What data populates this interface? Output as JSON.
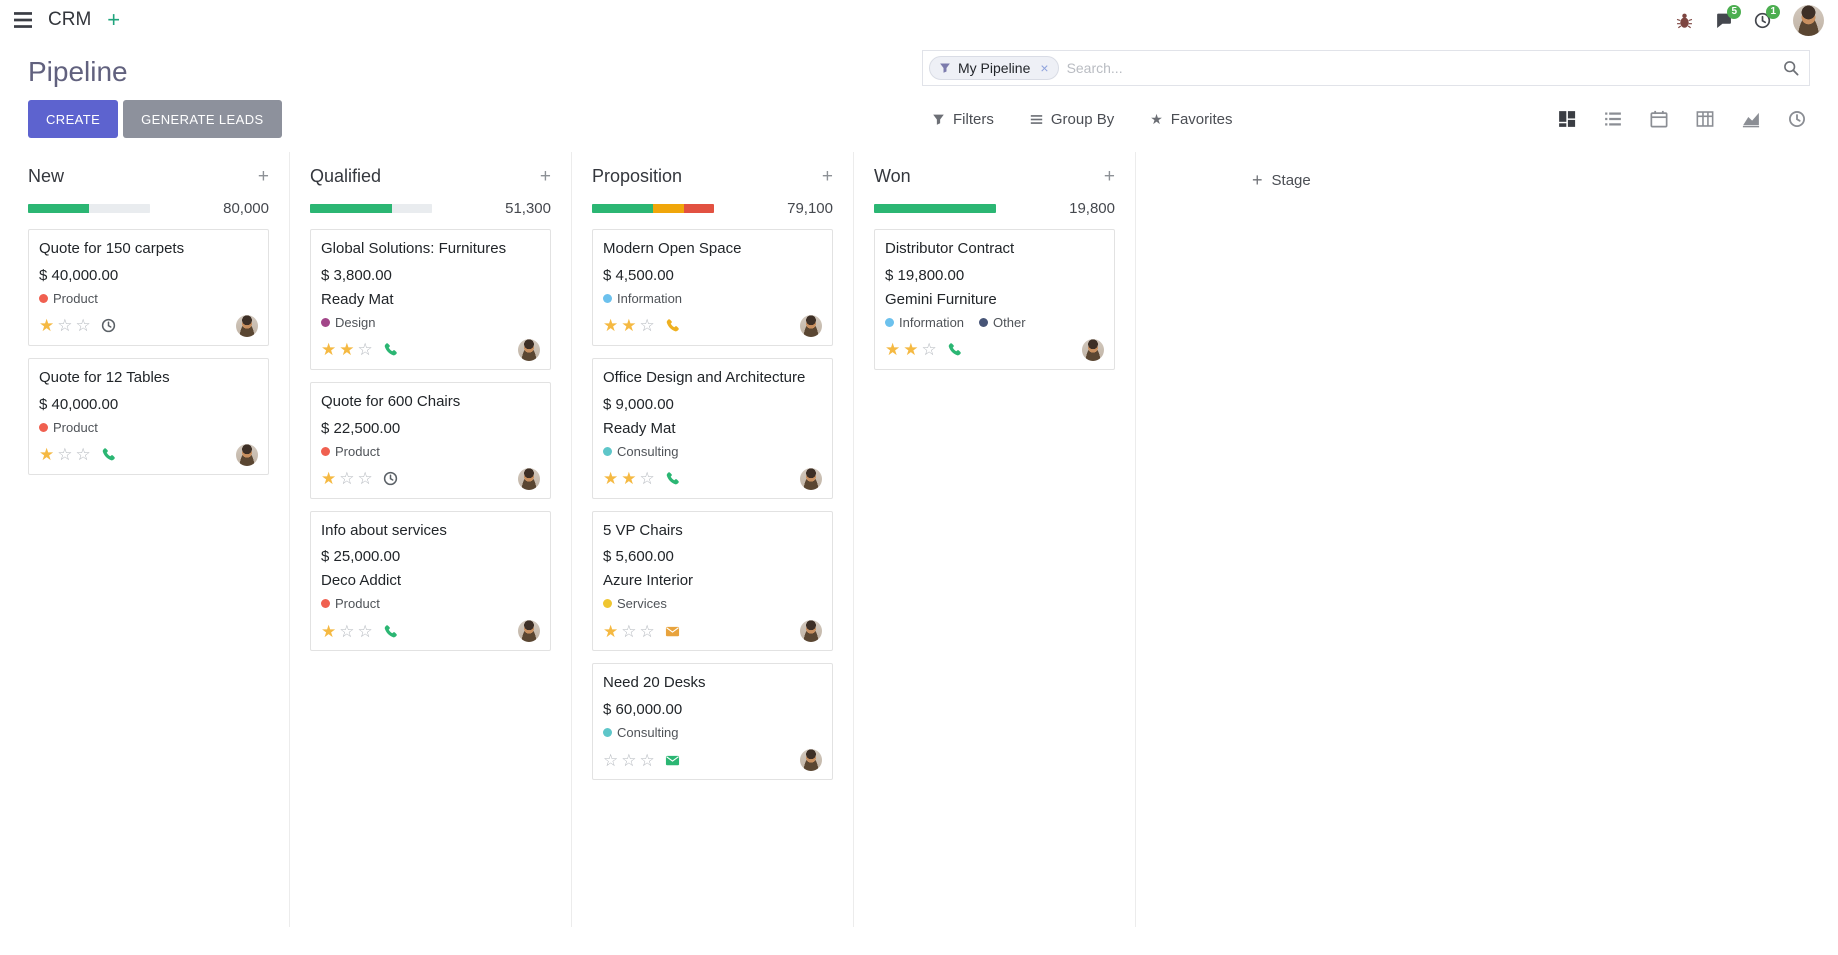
{
  "theme": {
    "primary": "#5d63cf",
    "secondary": "#8d919c",
    "star": "#f5b942",
    "badge": "#4cae50",
    "navbar_plus": "#1fa47c"
  },
  "navbar": {
    "app_name": "CRM",
    "messages_badge": "5",
    "activities_badge": "1"
  },
  "control_panel": {
    "title": "Pipeline",
    "create_label": "CREATE",
    "generate_leads_label": "GENERATE LEADS",
    "filters_label": "Filters",
    "group_by_label": "Group By",
    "favorites_label": "Favorites",
    "search": {
      "facet_label": "My Pipeline",
      "placeholder": "Search..."
    }
  },
  "view_switcher": {
    "active": "kanban",
    "views": [
      "kanban",
      "list",
      "calendar",
      "pivot",
      "graph",
      "activity"
    ]
  },
  "kanban": {
    "add_stage_label": "Stage",
    "progress_colors": {
      "success": "#2bb673",
      "warning": "#f0a60a",
      "danger": "#e25141",
      "empty": "#e9ecef"
    },
    "columns": [
      {
        "name": "New",
        "total": "80,000",
        "progress": [
          {
            "kind": "success",
            "pct": 50
          },
          {
            "kind": "empty",
            "pct": 50
          }
        ],
        "cards": [
          {
            "title": "Quote for 150 carpets",
            "amount": "$ 40,000.00",
            "tags": [
              {
                "label": "Product",
                "color": "#f06050"
              }
            ],
            "stars": 1,
            "activity": {
              "type": "clock",
              "color": "#5a6066"
            }
          },
          {
            "title": "Quote for 12 Tables",
            "amount": "$ 40,000.00",
            "tags": [
              {
                "label": "Product",
                "color": "#f06050"
              }
            ],
            "stars": 1,
            "activity": {
              "type": "phone",
              "color": "#2bb673"
            }
          }
        ]
      },
      {
        "name": "Qualified",
        "total": "51,300",
        "progress": [
          {
            "kind": "success",
            "pct": 67
          },
          {
            "kind": "empty",
            "pct": 33
          }
        ],
        "cards": [
          {
            "title": "Global Solutions: Furnitures",
            "amount": "$ 3,800.00",
            "partner": "Ready Mat",
            "tags": [
              {
                "label": "Design",
                "color": "#a24689"
              }
            ],
            "stars": 2,
            "activity": {
              "type": "phone",
              "color": "#2bb673"
            }
          },
          {
            "title": "Quote for 600 Chairs",
            "amount": "$ 22,500.00",
            "tags": [
              {
                "label": "Product",
                "color": "#f06050"
              }
            ],
            "stars": 1,
            "activity": {
              "type": "clock",
              "color": "#5a6066"
            }
          },
          {
            "title": "Info about services",
            "amount": "$ 25,000.00",
            "partner": "Deco Addict",
            "tags": [
              {
                "label": "Product",
                "color": "#f06050"
              }
            ],
            "stars": 1,
            "activity": {
              "type": "phone",
              "color": "#2bb673"
            }
          }
        ]
      },
      {
        "name": "Proposition",
        "total": "79,100",
        "progress": [
          {
            "kind": "success",
            "pct": 50
          },
          {
            "kind": "warning",
            "pct": 25
          },
          {
            "kind": "danger",
            "pct": 25
          }
        ],
        "cards": [
          {
            "title": "Modern Open Space",
            "amount": "$ 4,500.00",
            "tags": [
              {
                "label": "Information",
                "color": "#6cc1ed"
              }
            ],
            "stars": 2,
            "activity": {
              "type": "phone",
              "color": "#eeb021"
            }
          },
          {
            "title": "Office Design and Architecture",
            "amount": "$ 9,000.00",
            "partner": "Ready Mat",
            "tags": [
              {
                "label": "Consulting",
                "color": "#5ec6c9"
              }
            ],
            "stars": 2,
            "activity": {
              "type": "phone",
              "color": "#2bb673"
            }
          },
          {
            "title": "5 VP Chairs",
            "amount": "$ 5,600.00",
            "partner": "Azure Interior",
            "tags": [
              {
                "label": "Services",
                "color": "#efc631"
              }
            ],
            "stars": 1,
            "activity": {
              "type": "envelope",
              "color": "#e8a33d"
            }
          },
          {
            "title": "Need 20 Desks",
            "amount": "$ 60,000.00",
            "tags": [
              {
                "label": "Consulting",
                "color": "#5ec6c9"
              }
            ],
            "stars": 0,
            "activity": {
              "type": "envelope",
              "color": "#2bb673"
            }
          }
        ]
      },
      {
        "name": "Won",
        "total": "19,800",
        "progress": [
          {
            "kind": "success",
            "pct": 100
          }
        ],
        "cards": [
          {
            "title": "Distributor Contract",
            "amount": "$ 19,800.00",
            "partner": "Gemini Furniture",
            "tags": [
              {
                "label": "Information",
                "color": "#6cc1ed"
              },
              {
                "label": "Other",
                "color": "#475577"
              }
            ],
            "stars": 2,
            "activity": {
              "type": "phone",
              "color": "#2bb673"
            }
          }
        ]
      }
    ]
  }
}
